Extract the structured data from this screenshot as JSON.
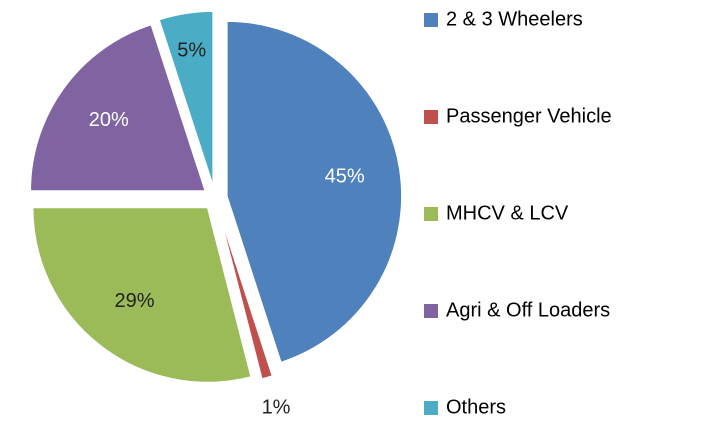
{
  "chart_data": {
    "type": "pie",
    "categories": [
      "2 & 3 Wheelers",
      "Passenger Vehicle",
      "MHCV & LCV",
      "Agri & Off Loaders",
      "Others"
    ],
    "values": [
      45,
      1,
      29,
      20,
      5
    ],
    "value_labels": [
      "45%",
      "1%",
      "29%",
      "20%",
      "5%"
    ],
    "colors": [
      "#4f81bd",
      "#c0504d",
      "#9bbb59",
      "#8064a2",
      "#4bacc6"
    ],
    "legend": "right"
  }
}
